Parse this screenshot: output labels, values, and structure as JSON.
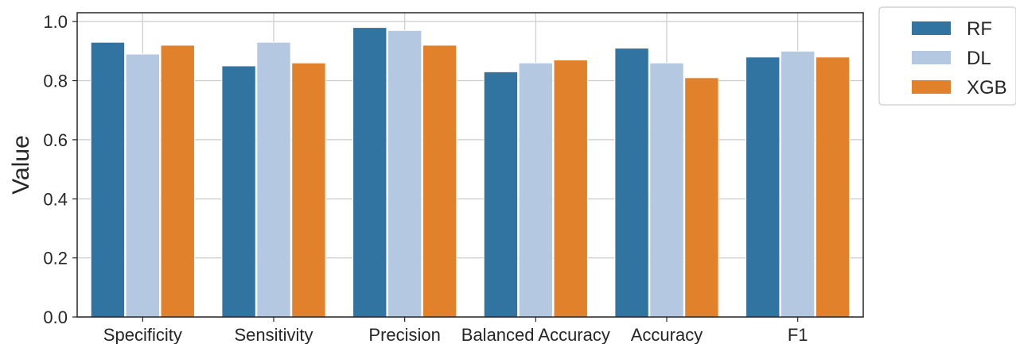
{
  "chart_data": {
    "type": "bar",
    "title": "",
    "xlabel": "",
    "ylabel": "Value",
    "ylim": [
      0,
      1.03
    ],
    "yticks": [
      "0.0",
      "0.2",
      "0.4",
      "0.6",
      "0.8",
      "1.0"
    ],
    "grid": true,
    "legend_position": "outside-top-right",
    "categories": [
      "Specificity",
      "Sensitivity",
      "Precision",
      "Balanced Accuracy",
      "Accuracy",
      "F1"
    ],
    "series": [
      {
        "name": "RF",
        "color": "#3274a1",
        "values": [
          0.93,
          0.85,
          0.98,
          0.83,
          0.91,
          0.88
        ]
      },
      {
        "name": "DL",
        "color": "#b5c8e2",
        "values": [
          0.89,
          0.93,
          0.97,
          0.86,
          0.86,
          0.9
        ]
      },
      {
        "name": "XGB",
        "color": "#e1812c",
        "values": [
          0.92,
          0.86,
          0.92,
          0.87,
          0.81,
          0.88
        ]
      }
    ]
  }
}
